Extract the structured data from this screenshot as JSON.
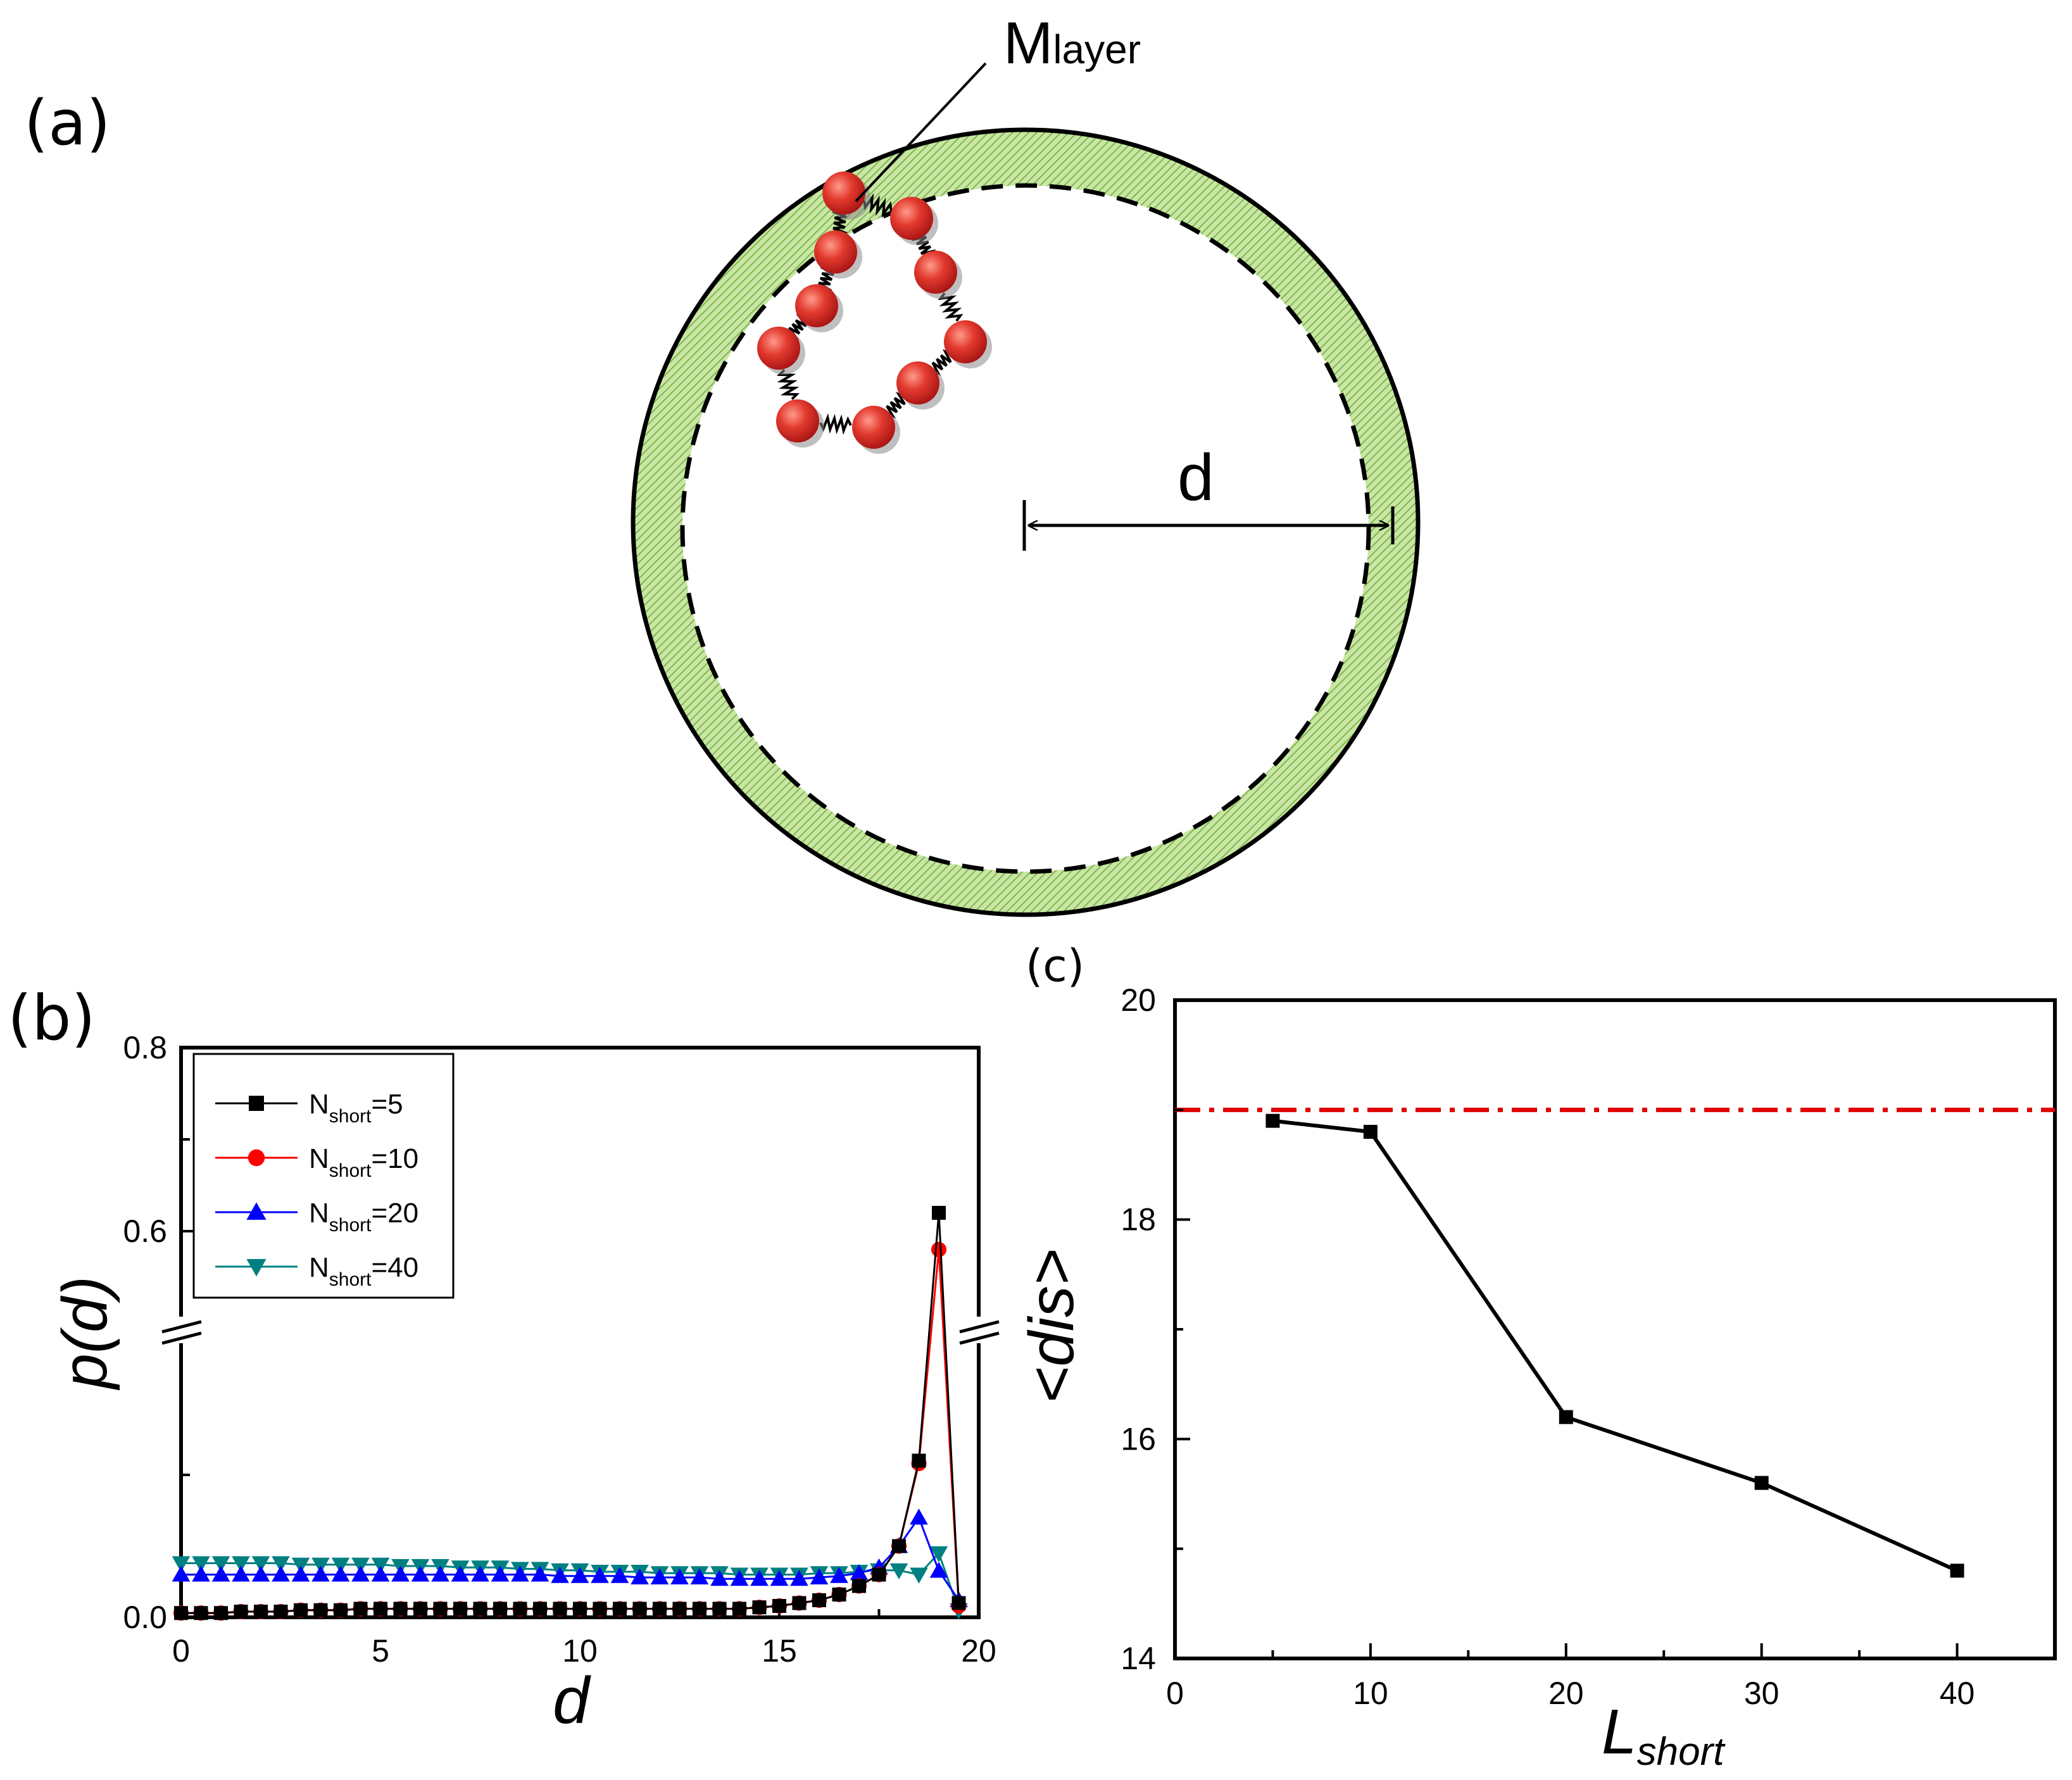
{
  "panels": {
    "a": {
      "label": "(a)",
      "annotation_main": "M",
      "annotation_sub": "layer",
      "distance_label": "d"
    },
    "b": {
      "label": "(b)"
    },
    "c": {
      "label": "(c)"
    }
  },
  "colors": {
    "ring_fill": "#b6d98a",
    "bead": "#e03030",
    "series_black": "#000000",
    "series_red": "#ff0000",
    "series_blue": "#0000ff",
    "series_teal": "#008080",
    "reference_line": "#e00000"
  },
  "chart_data": [
    {
      "id": "b",
      "type": "line",
      "xlabel": "d",
      "ylabel": "p(d)",
      "xlim": [
        0,
        20
      ],
      "ylim": [
        0,
        0.8
      ],
      "axis_break": true,
      "xticks": [
        "0",
        "5",
        "10",
        "15",
        "20"
      ],
      "yticks": [
        "0.0",
        "0.6",
        "0.8"
      ],
      "legend_position": "top-left",
      "x": [
        0,
        0.5,
        1,
        1.5,
        2,
        2.5,
        3,
        3.5,
        4,
        4.5,
        5,
        5.5,
        6,
        6.5,
        7,
        7.5,
        8,
        8.5,
        9,
        9.5,
        10,
        10.5,
        11,
        11.5,
        12,
        12.5,
        13,
        13.5,
        14,
        14.5,
        15,
        15.5,
        16,
        16.5,
        17,
        17.5,
        18,
        18.5,
        19,
        19.5
      ],
      "series": [
        {
          "name": "N_short=5",
          "label_main": "N",
          "label_sub": "short",
          "label_value": "=5",
          "marker": "square",
          "color": "#000000",
          "values": [
            0.003,
            0.003,
            0.003,
            0.004,
            0.004,
            0.004,
            0.005,
            0.005,
            0.005,
            0.006,
            0.006,
            0.006,
            0.006,
            0.006,
            0.006,
            0.006,
            0.006,
            0.006,
            0.006,
            0.006,
            0.006,
            0.006,
            0.006,
            0.006,
            0.006,
            0.006,
            0.006,
            0.006,
            0.006,
            0.007,
            0.008,
            0.01,
            0.012,
            0.016,
            0.022,
            0.03,
            0.05,
            0.11,
            0.62,
            0.01
          ]
        },
        {
          "name": "N_short=10",
          "label_main": "N",
          "label_sub": "short",
          "label_value": "=10",
          "marker": "circle",
          "color": "#ff0000",
          "values": [
            0.003,
            0.003,
            0.003,
            0.004,
            0.004,
            0.004,
            0.005,
            0.005,
            0.005,
            0.006,
            0.006,
            0.006,
            0.006,
            0.006,
            0.006,
            0.006,
            0.006,
            0.006,
            0.006,
            0.006,
            0.006,
            0.006,
            0.006,
            0.006,
            0.006,
            0.006,
            0.006,
            0.006,
            0.006,
            0.007,
            0.008,
            0.01,
            0.012,
            0.016,
            0.022,
            0.03,
            0.05,
            0.108,
            0.58,
            0.008
          ]
        },
        {
          "name": "N_short=20",
          "label_main": "N",
          "label_sub": "short",
          "label_value": "=20",
          "marker": "triangle-up",
          "color": "#0000ff",
          "values": [
            0.03,
            0.03,
            0.03,
            0.03,
            0.03,
            0.03,
            0.03,
            0.03,
            0.03,
            0.03,
            0.03,
            0.03,
            0.03,
            0.03,
            0.03,
            0.03,
            0.03,
            0.03,
            0.03,
            0.029,
            0.029,
            0.029,
            0.029,
            0.028,
            0.028,
            0.028,
            0.028,
            0.027,
            0.027,
            0.027,
            0.027,
            0.027,
            0.028,
            0.029,
            0.031,
            0.035,
            0.05,
            0.07,
            0.23,
            0.012
          ]
        },
        {
          "name": "N_short=40",
          "label_main": "N",
          "label_sub": "short",
          "label_value": "=40",
          "marker": "triangle-down",
          "color": "#008080",
          "values": [
            0.038,
            0.038,
            0.038,
            0.038,
            0.038,
            0.038,
            0.037,
            0.037,
            0.037,
            0.037,
            0.037,
            0.036,
            0.036,
            0.036,
            0.035,
            0.035,
            0.035,
            0.034,
            0.034,
            0.033,
            0.033,
            0.032,
            0.032,
            0.032,
            0.031,
            0.031,
            0.031,
            0.031,
            0.03,
            0.03,
            0.03,
            0.03,
            0.031,
            0.031,
            0.032,
            0.033,
            0.033,
            0.03,
            0.045,
            0.005
          ]
        }
      ]
    },
    {
      "id": "c",
      "type": "line",
      "xlabel": "L",
      "xlabel_sub": "short",
      "ylabel": "<dis>",
      "xlim": [
        0,
        45
      ],
      "ylim": [
        14,
        20
      ],
      "xticks": [
        "0",
        "10",
        "20",
        "30",
        "40"
      ],
      "yticks": [
        "14",
        "16",
        "18",
        "20"
      ],
      "x": [
        5,
        10,
        20,
        30,
        40
      ],
      "values": [
        18.9,
        18.8,
        16.2,
        15.6,
        14.8
      ],
      "reference_line_y": 19.0
    }
  ]
}
